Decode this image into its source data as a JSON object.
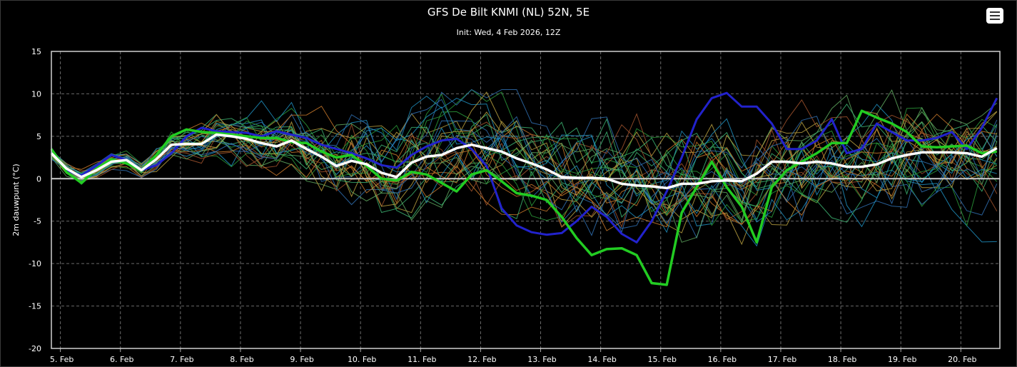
{
  "header": {
    "title": "GFS De Bilt KNMI (NL) 52N, 5E",
    "subtitle": "Init: Wed, 4 Feb 2026, 12Z"
  },
  "toolbar": {
    "menu_icon": "hamburger-menu-icon"
  },
  "colors": {
    "background": "#000000",
    "grid": "#6a6a6a",
    "zero_line": "#cccccc",
    "mean": "#ffffff",
    "control": "#2222cc",
    "operational": "#22cc22",
    "member_palette": [
      "#1f8fbf",
      "#2a9a3a",
      "#3cb371",
      "#c8782a",
      "#b8a040",
      "#2f6fb0",
      "#5fa85f",
      "#a0522d"
    ]
  },
  "chart_data": {
    "type": "line",
    "title": "GFS De Bilt KNMI (NL) 52N, 5E",
    "subtitle": "Init: Wed, 4 Feb 2026, 12Z",
    "ylabel": "2m dauwpunt (°C)",
    "xlabel": "",
    "ylim": [
      -20,
      15
    ],
    "yticks": [
      15,
      10,
      5,
      0,
      -5,
      -10,
      -15,
      -20
    ],
    "xlim": [
      -0.15,
      15.65
    ],
    "x_unit": "days from 5 Feb",
    "xtick_labels": [
      "5. Feb",
      "6. Feb",
      "7. Feb",
      "8. Feb",
      "9. Feb",
      "10. Feb",
      "11. Feb",
      "12. Feb",
      "13. Feb",
      "14. Feb",
      "15. Feb",
      "16. Feb",
      "17. Feb",
      "18. Feb",
      "19. Feb",
      "20. Feb"
    ],
    "grid": true,
    "legend": "none",
    "series": [
      {
        "role": "ensemble-mean",
        "points": [
          [
            -0.15,
            3.0
          ],
          [
            0.1,
            1.2
          ],
          [
            0.35,
            0.2
          ],
          [
            0.6,
            1.0
          ],
          [
            0.85,
            2.0
          ],
          [
            1.1,
            2.2
          ],
          [
            1.35,
            1.0
          ],
          [
            1.6,
            2.3
          ],
          [
            1.85,
            4.0
          ],
          [
            2.1,
            4.1
          ],
          [
            2.35,
            4.1
          ],
          [
            2.6,
            5.2
          ],
          [
            2.85,
            5.0
          ],
          [
            3.1,
            4.7
          ],
          [
            3.35,
            4.2
          ],
          [
            3.6,
            3.8
          ],
          [
            3.85,
            4.5
          ],
          [
            4.1,
            3.5
          ],
          [
            4.35,
            2.6
          ],
          [
            4.6,
            1.5
          ],
          [
            4.85,
            2.1
          ],
          [
            5.1,
            1.7
          ],
          [
            5.35,
            0.7
          ],
          [
            5.6,
            0.2
          ],
          [
            5.85,
            1.9
          ],
          [
            6.1,
            2.6
          ],
          [
            6.35,
            2.8
          ],
          [
            6.6,
            3.6
          ],
          [
            6.85,
            4.0
          ],
          [
            7.1,
            3.6
          ],
          [
            7.35,
            3.2
          ],
          [
            7.6,
            2.4
          ],
          [
            7.85,
            1.8
          ],
          [
            8.1,
            1.1
          ],
          [
            8.35,
            0.2
          ],
          [
            8.6,
            0.1
          ],
          [
            8.85,
            0.1
          ],
          [
            9.1,
            0.0
          ],
          [
            9.35,
            -0.6
          ],
          [
            9.6,
            -0.8
          ],
          [
            9.85,
            -0.9
          ],
          [
            10.1,
            -1.1
          ],
          [
            10.35,
            -0.6
          ],
          [
            10.6,
            -0.6
          ],
          [
            10.85,
            -0.3
          ],
          [
            11.1,
            -0.2
          ],
          [
            11.35,
            -0.3
          ],
          [
            11.6,
            0.6
          ],
          [
            11.85,
            2.0
          ],
          [
            12.1,
            2.0
          ],
          [
            12.35,
            1.8
          ],
          [
            12.6,
            2.0
          ],
          [
            12.85,
            1.8
          ],
          [
            13.1,
            1.4
          ],
          [
            13.35,
            1.4
          ],
          [
            13.6,
            1.7
          ],
          [
            13.85,
            2.4
          ],
          [
            14.1,
            2.8
          ],
          [
            14.35,
            3.1
          ],
          [
            14.6,
            3.1
          ],
          [
            14.85,
            3.1
          ],
          [
            15.1,
            3.0
          ],
          [
            15.35,
            2.6
          ],
          [
            15.6,
            3.6
          ]
        ]
      },
      {
        "role": "control",
        "points": [
          [
            -0.15,
            3.2
          ],
          [
            0.1,
            1.0
          ],
          [
            0.35,
            0.4
          ],
          [
            0.6,
            1.5
          ],
          [
            0.85,
            2.8
          ],
          [
            1.1,
            2.2
          ],
          [
            1.35,
            1.0
          ],
          [
            1.6,
            1.6
          ],
          [
            1.85,
            3.0
          ],
          [
            2.1,
            5.0
          ],
          [
            2.35,
            6.0
          ],
          [
            2.6,
            5.6
          ],
          [
            2.85,
            5.5
          ],
          [
            3.1,
            5.4
          ],
          [
            3.35,
            5.0
          ],
          [
            3.6,
            5.6
          ],
          [
            3.85,
            5.2
          ],
          [
            4.1,
            4.8
          ],
          [
            4.35,
            4.0
          ],
          [
            4.6,
            3.5
          ],
          [
            4.85,
            3.0
          ],
          [
            5.1,
            2.4
          ],
          [
            5.35,
            1.6
          ],
          [
            5.6,
            1.3
          ],
          [
            5.85,
            2.8
          ],
          [
            6.1,
            3.8
          ],
          [
            6.35,
            4.5
          ],
          [
            6.6,
            4.7
          ],
          [
            6.85,
            3.5
          ],
          [
            7.1,
            1.5
          ],
          [
            7.35,
            -3.5
          ],
          [
            7.6,
            -5.5
          ],
          [
            7.85,
            -6.3
          ],
          [
            8.1,
            -6.6
          ],
          [
            8.35,
            -6.4
          ],
          [
            8.6,
            -5.0
          ],
          [
            8.85,
            -3.3
          ],
          [
            9.1,
            -4.5
          ],
          [
            9.35,
            -6.5
          ],
          [
            9.6,
            -7.5
          ],
          [
            9.85,
            -5.0
          ],
          [
            10.1,
            -1.5
          ],
          [
            10.35,
            2.5
          ],
          [
            10.6,
            7.0
          ],
          [
            10.85,
            9.5
          ],
          [
            11.1,
            10.1
          ],
          [
            11.35,
            8.5
          ],
          [
            11.6,
            8.5
          ],
          [
            11.85,
            6.5
          ],
          [
            12.1,
            3.5
          ],
          [
            12.35,
            3.5
          ],
          [
            12.6,
            4.5
          ],
          [
            12.85,
            7.0
          ],
          [
            13.1,
            3.0
          ],
          [
            13.35,
            3.5
          ],
          [
            13.6,
            6.5
          ],
          [
            13.85,
            5.5
          ],
          [
            14.1,
            4.5
          ],
          [
            14.35,
            4.5
          ],
          [
            14.6,
            4.8
          ],
          [
            14.85,
            5.5
          ],
          [
            15.1,
            3.5
          ],
          [
            15.35,
            6.0
          ],
          [
            15.6,
            9.5
          ]
        ]
      },
      {
        "role": "operational",
        "points": [
          [
            -0.15,
            3.5
          ],
          [
            0.1,
            0.8
          ],
          [
            0.35,
            -0.5
          ],
          [
            0.6,
            1.2
          ],
          [
            0.85,
            2.3
          ],
          [
            1.1,
            1.8
          ],
          [
            1.35,
            1.0
          ],
          [
            1.6,
            2.8
          ],
          [
            1.85,
            5.0
          ],
          [
            2.1,
            5.8
          ],
          [
            2.35,
            5.5
          ],
          [
            2.6,
            5.4
          ],
          [
            2.85,
            5.2
          ],
          [
            3.1,
            5.0
          ],
          [
            3.35,
            4.8
          ],
          [
            3.6,
            4.8
          ],
          [
            3.85,
            4.3
          ],
          [
            4.1,
            4.2
          ],
          [
            4.35,
            3.2
          ],
          [
            4.6,
            2.5
          ],
          [
            4.85,
            2.8
          ],
          [
            5.1,
            1.5
          ],
          [
            5.35,
            0.0
          ],
          [
            5.6,
            -0.2
          ],
          [
            5.85,
            0.8
          ],
          [
            6.1,
            0.5
          ],
          [
            6.35,
            -0.5
          ],
          [
            6.6,
            -1.5
          ],
          [
            6.85,
            0.5
          ],
          [
            7.1,
            1.0
          ],
          [
            7.35,
            -0.3
          ],
          [
            7.6,
            -1.7
          ],
          [
            7.85,
            -2.0
          ],
          [
            8.1,
            -2.5
          ],
          [
            8.35,
            -4.5
          ],
          [
            8.6,
            -7.0
          ],
          [
            8.85,
            -9.0
          ],
          [
            9.1,
            -8.3
          ],
          [
            9.35,
            -8.2
          ],
          [
            9.6,
            -9.0
          ],
          [
            9.85,
            -12.3
          ],
          [
            10.1,
            -12.5
          ],
          [
            10.35,
            -4.0
          ],
          [
            10.6,
            -1.0
          ],
          [
            10.85,
            2.0
          ],
          [
            11.1,
            -1.0
          ],
          [
            11.35,
            -3.3
          ],
          [
            11.6,
            -7.5
          ],
          [
            11.85,
            -1.0
          ],
          [
            12.1,
            1.0
          ],
          [
            12.35,
            2.0
          ],
          [
            12.6,
            3.0
          ],
          [
            12.85,
            4.2
          ],
          [
            13.1,
            4.2
          ],
          [
            13.35,
            8.0
          ],
          [
            13.6,
            7.2
          ],
          [
            13.85,
            6.5
          ],
          [
            14.1,
            5.5
          ],
          [
            14.35,
            3.8
          ],
          [
            14.6,
            3.7
          ],
          [
            14.85,
            3.8
          ],
          [
            15.1,
            3.9
          ],
          [
            15.35,
            3.0
          ],
          [
            15.6,
            3.2
          ]
        ]
      }
    ],
    "member_count": 30
  }
}
